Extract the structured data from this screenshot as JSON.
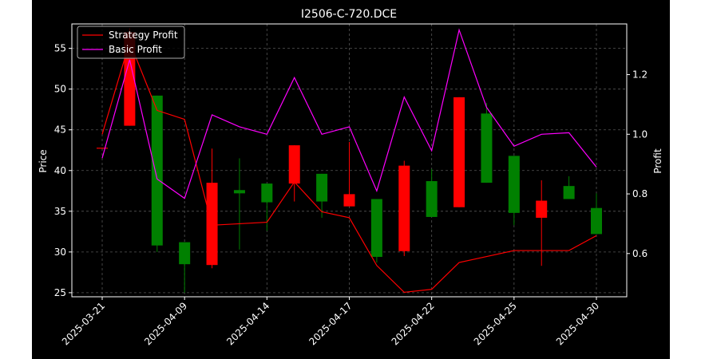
{
  "chart_data": {
    "type": "candlestick",
    "title": "I2506-C-720.DCE",
    "ylabel_left": "Price",
    "ylabel_right": "Profit",
    "xlabel": "",
    "ylim_left": [
      24.5,
      58
    ],
    "ylim_right": [
      0.455,
      1.37
    ],
    "yticks_left": [
      25,
      30,
      35,
      40,
      45,
      50,
      55
    ],
    "yticks_right": [
      0.6,
      0.8,
      1.0,
      1.2
    ],
    "grid": true,
    "legend_position": "top-left",
    "x_tick_labels": [
      "2025-03-21",
      "2025-04-09",
      "2025-04-14",
      "2025-04-17",
      "2025-04-22",
      "2025-04-25",
      "2025-04-30"
    ],
    "x_tick_positions": [
      0,
      3,
      6,
      9,
      12,
      15,
      18
    ],
    "candles": [
      {
        "x": 0,
        "open": 42.8,
        "close": 42.8,
        "high": 42.8,
        "low": 42.8
      },
      {
        "x": 1,
        "open": 45.5,
        "close": 57.0,
        "high": 57.5,
        "low": 45.5
      },
      {
        "x": 2,
        "open": 49.2,
        "close": 30.8,
        "high": 49.2,
        "low": 30.0
      },
      {
        "x": 3,
        "open": 31.2,
        "close": 28.5,
        "high": 31.2,
        "low": 25.0
      },
      {
        "x": 4,
        "open": 28.4,
        "close": 38.5,
        "high": 42.7,
        "low": 28.0
      },
      {
        "x": 5,
        "open": 37.6,
        "close": 37.2,
        "high": 41.5,
        "low": 30.3
      },
      {
        "x": 6,
        "open": 38.4,
        "close": 36.1,
        "high": 38.4,
        "low": 32.6
      },
      {
        "x": 7,
        "open": 38.4,
        "close": 43.1,
        "high": 43.1,
        "low": 36.2
      },
      {
        "x": 8,
        "open": 39.6,
        "close": 36.2,
        "high": 39.6,
        "low": 34.2
      },
      {
        "x": 9,
        "open": 35.6,
        "close": 37.1,
        "high": 43.5,
        "low": 35.6
      },
      {
        "x": 10,
        "open": 36.5,
        "close": 29.4,
        "high": 36.5,
        "low": 28.7
      },
      {
        "x": 11,
        "open": 30.1,
        "close": 40.6,
        "high": 41.2,
        "low": 29.5
      },
      {
        "x": 12,
        "open": 38.7,
        "close": 34.3,
        "high": 40.2,
        "low": 34.3
      },
      {
        "x": 13,
        "open": 35.5,
        "close": 49.0,
        "high": 49.0,
        "low": 35.5
      },
      {
        "x": 14,
        "open": 47.0,
        "close": 38.5,
        "high": 48.3,
        "low": 38.5
      },
      {
        "x": 15,
        "open": 41.8,
        "close": 34.8,
        "high": 41.8,
        "low": 33.3
      },
      {
        "x": 16,
        "open": 34.2,
        "close": 36.3,
        "high": 38.8,
        "low": 28.3
      },
      {
        "x": 17,
        "open": 38.1,
        "close": 36.5,
        "high": 39.3,
        "low": 36.5
      },
      {
        "x": 18,
        "open": 35.4,
        "close": 32.2,
        "high": 37.2,
        "low": 32.2
      }
    ],
    "colors": {
      "up": "#ff0000",
      "down": "#008000",
      "background": "#000000",
      "grid": "#555555",
      "axis": "#ffffff"
    },
    "series": [
      {
        "name": "Strategy Profit",
        "axis": "right",
        "color": "#ff0000",
        "x": [
          0,
          1,
          2,
          3,
          4,
          5,
          6,
          7,
          8,
          9,
          10,
          11,
          12,
          13,
          14,
          15,
          16,
          17,
          18
        ],
        "values": [
          1.0,
          1.31,
          1.08,
          1.05,
          0.695,
          0.7,
          0.705,
          0.84,
          0.74,
          0.72,
          0.56,
          0.47,
          0.48,
          0.57,
          0.59,
          0.61,
          0.61,
          0.61,
          0.66
        ]
      },
      {
        "name": "Basic Profit",
        "axis": "right",
        "color": "#ff00ff",
        "x": [
          0,
          1,
          2,
          3,
          4,
          5,
          6,
          7,
          8,
          9,
          10,
          11,
          12,
          13,
          14,
          15,
          16,
          17,
          18
        ],
        "values": [
          0.92,
          1.25,
          0.85,
          0.785,
          1.065,
          1.025,
          1.0,
          1.19,
          1.0,
          1.025,
          0.81,
          1.125,
          0.945,
          1.35,
          1.09,
          0.96,
          1.0,
          1.005,
          0.89
        ]
      }
    ]
  }
}
